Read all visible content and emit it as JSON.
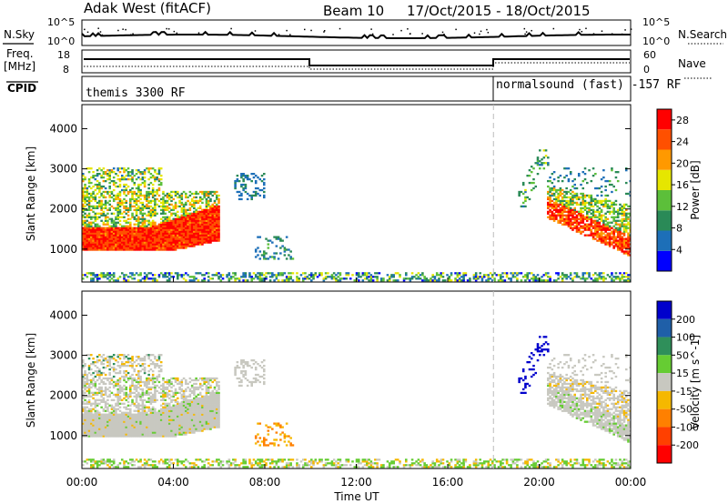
{
  "header": {
    "title": "Adak West (fitACF)",
    "beam": "Beam 10",
    "dates": "17/Oct/2015 - 18/Oct/2015"
  },
  "sky_panel": {
    "left_label": "N.Sky",
    "left_ticks": [
      "10^5",
      "10^0"
    ],
    "right_ticks": [
      "10^5",
      "10^0"
    ],
    "right_label": "N.Search"
  },
  "freq_panel": {
    "left_label_1": "Freq.",
    "left_label_2": "[MHz]",
    "left_ticks": [
      "18",
      "8"
    ],
    "right_ticks": [
      "60",
      "0"
    ],
    "right_label": "Nave"
  },
  "cpid_panel": {
    "label": "CPID",
    "mode_1": "themis 3300 RF",
    "mode_2": "normalsound (fast) -157 RF"
  },
  "chart_data": [
    {
      "type": "heatmap",
      "name": "power",
      "xlabel": "Time UT",
      "ylabel": "Slant Range [km]",
      "x_ticks": [
        "00:00",
        "04:00",
        "08:00",
        "12:00",
        "16:00",
        "20:00",
        "00:00"
      ],
      "xlim_hours": [
        0,
        24
      ],
      "y_ticks": [
        1000,
        2000,
        3000,
        4000
      ],
      "ylim": [
        180,
        4600
      ],
      "colorbar_label": "Power [dB]",
      "colorbar_ticks": [
        4,
        8,
        12,
        16,
        20,
        24,
        28
      ],
      "colorbar_range": [
        0,
        30
      ],
      "colorscale": [
        "#0000ff",
        "#1d6fb8",
        "#2a8a57",
        "#5cbf3a",
        "#e6e600",
        "#ff9900",
        "#ff5000",
        "#ff0000"
      ]
    },
    {
      "type": "heatmap",
      "name": "velocity",
      "xlabel": "Time UT",
      "ylabel": "Slant Range [km]",
      "x_ticks": [
        "00:00",
        "04:00",
        "08:00",
        "12:00",
        "16:00",
        "20:00",
        "00:00"
      ],
      "xlim_hours": [
        0,
        24
      ],
      "y_ticks": [
        1000,
        2000,
        3000,
        4000
      ],
      "ylim": [
        180,
        4600
      ],
      "colorbar_label": "Velocity [m s^-1]",
      "colorbar_ticks": [
        200,
        100,
        50,
        15,
        -15,
        -50,
        -100,
        -200
      ],
      "colorbar_colors": [
        "#0000cc",
        "#1f5fa8",
        "#2f8f5a",
        "#66cc33",
        "#c8c8c0",
        "#f5b800",
        "#ff8000",
        "#ff4000",
        "#ff0000"
      ]
    }
  ],
  "dashed_marker_hour": 18,
  "x_axis_title": "Time UT"
}
